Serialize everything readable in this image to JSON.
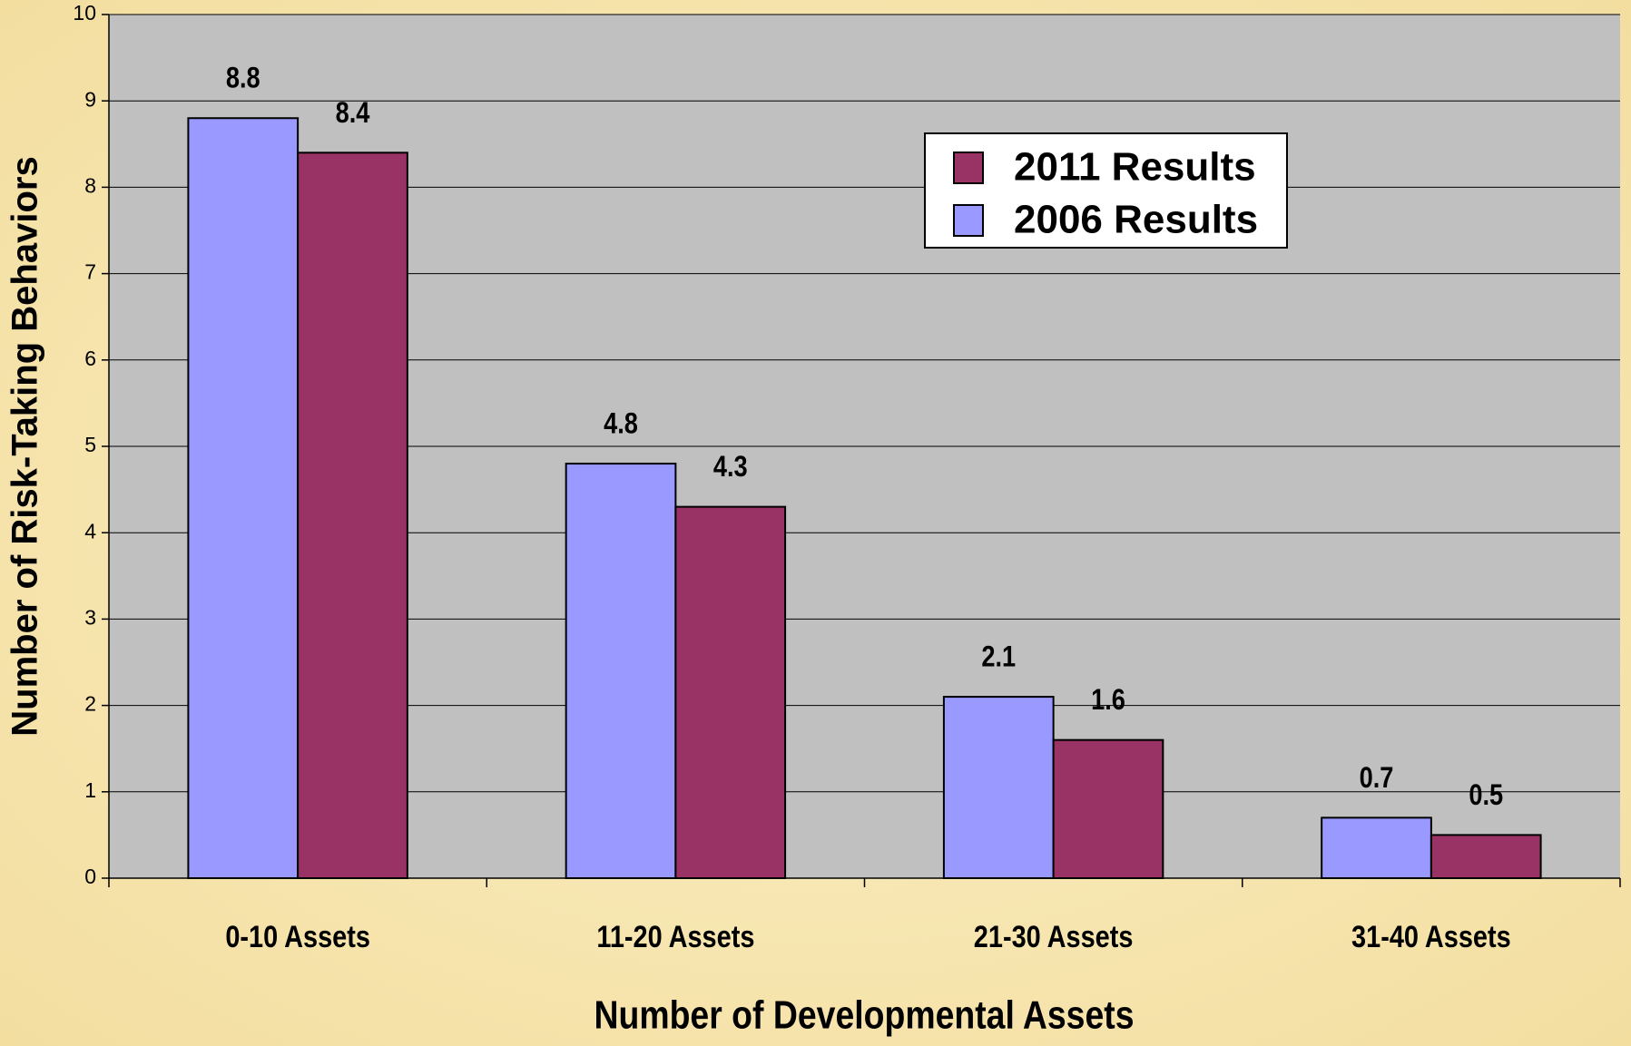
{
  "chart_data": {
    "type": "bar",
    "x_label": "Number of Developmental Assets",
    "y_label": "Number of Risk-Taking Behaviors",
    "categories": [
      "0-10 Assets",
      "11-20 Assets",
      "21-30 Assets",
      "31-40 Assets"
    ],
    "series": [
      {
        "name": "2006 Results",
        "color": "#9999ff",
        "values": [
          8.8,
          4.8,
          2.1,
          0.7
        ]
      },
      {
        "name": "2011 Results",
        "color": "#993366",
        "values": [
          8.4,
          4.3,
          1.6,
          0.5
        ]
      }
    ],
    "ylim": [
      0,
      10
    ],
    "yticks": [
      0,
      1,
      2,
      3,
      4,
      5,
      6,
      7,
      8,
      9,
      10
    ],
    "grid": true,
    "legend": "upper right"
  }
}
